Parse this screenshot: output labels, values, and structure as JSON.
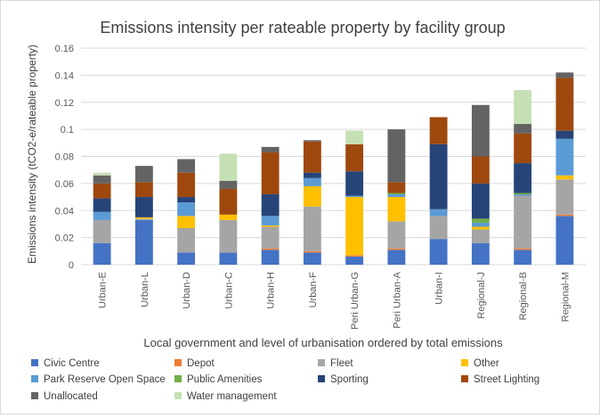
{
  "chart_data": {
    "type": "bar",
    "stacked": true,
    "title": "Emissions intensity per rateable property by facility group",
    "xlabel": "Local government and level of urbanisation ordered by total emissions",
    "ylabel": "Emissions intensity (tCO2-e/rateable property)",
    "ylim": [
      0,
      0.16
    ],
    "yticks": [
      "0",
      "0.02",
      "0.04",
      "0.06",
      "0.08",
      "0.1",
      "0.12",
      "0.14",
      "0.16"
    ],
    "grid": true,
    "legend_position": "bottom",
    "categories": [
      "Urban-E",
      "Urban-L",
      "Urban-D",
      "Urban-C",
      "Urban-H",
      "Urban-F",
      "Peri Urban-G",
      "Peri Urban-A",
      "Urban-I",
      "Regional-J",
      "Regional-B",
      "Regional-M"
    ],
    "series": [
      {
        "name": "Civic Centre",
        "color": "#4472C4",
        "values": [
          0.016,
          0.033,
          0.009,
          0.009,
          0.011,
          0.009,
          0.006,
          0.011,
          0.019,
          0.016,
          0.011,
          0.036
        ]
      },
      {
        "name": "Depot",
        "color": "#ED7D31",
        "values": [
          0.0,
          0.0,
          0.0,
          0.0,
          0.001,
          0.001,
          0.001,
          0.001,
          0.0,
          0.0,
          0.001,
          0.001
        ]
      },
      {
        "name": "Fleet",
        "color": "#A5A5A5",
        "values": [
          0.017,
          0.001,
          0.018,
          0.024,
          0.016,
          0.033,
          0.0,
          0.02,
          0.017,
          0.01,
          0.039,
          0.026
        ]
      },
      {
        "name": "Other",
        "color": "#FFC000",
        "values": [
          0.0,
          0.001,
          0.009,
          0.004,
          0.001,
          0.015,
          0.043,
          0.018,
          0.0,
          0.002,
          0.0,
          0.003
        ]
      },
      {
        "name": "Park Reserve Open Space",
        "color": "#5B9BD5",
        "values": [
          0.006,
          0.0,
          0.01,
          0.0,
          0.007,
          0.006,
          0.001,
          0.002,
          0.005,
          0.003,
          0.001,
          0.027
        ]
      },
      {
        "name": "Public Amenities",
        "color": "#70AD47",
        "values": [
          0.0,
          0.0,
          0.0,
          0.0,
          0.0,
          0.0,
          0.0,
          0.001,
          0.0,
          0.003,
          0.001,
          0.0
        ]
      },
      {
        "name": "Sporting",
        "color": "#264478",
        "values": [
          0.01,
          0.015,
          0.004,
          0.0,
          0.016,
          0.004,
          0.018,
          0.0,
          0.048,
          0.026,
          0.022,
          0.006
        ]
      },
      {
        "name": "Street Lighting",
        "color": "#9E480E",
        "values": [
          0.011,
          0.011,
          0.018,
          0.019,
          0.031,
          0.023,
          0.02,
          0.008,
          0.02,
          0.02,
          0.022,
          0.039
        ]
      },
      {
        "name": "Unallocated",
        "color": "#636363",
        "values": [
          0.006,
          0.012,
          0.01,
          0.006,
          0.004,
          0.001,
          0.0,
          0.039,
          0.0,
          0.038,
          0.007,
          0.004
        ]
      },
      {
        "name": "Water management",
        "color": "#C5E0B4",
        "values": [
          0.002,
          0.0,
          0.0,
          0.02,
          0.0,
          0.0,
          0.01,
          0.0,
          0.0,
          0.0,
          0.025,
          0.0
        ]
      }
    ]
  }
}
